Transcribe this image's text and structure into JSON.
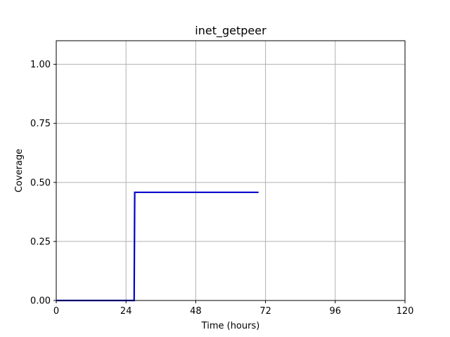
{
  "chart_data": {
    "type": "line",
    "title": "inet_getpeer",
    "xlabel": "Time (hours)",
    "ylabel": "Coverage",
    "xlim": [
      0,
      120
    ],
    "ylim": [
      0,
      1.1
    ],
    "xticks": [
      0,
      24,
      48,
      72,
      96,
      120
    ],
    "yticks": [
      0.0,
      0.25,
      0.5,
      0.75,
      1.0
    ],
    "xtick_labels": [
      "0",
      "24",
      "48",
      "72",
      "96",
      "120"
    ],
    "ytick_labels": [
      "0.00",
      "0.25",
      "0.50",
      "0.75",
      "1.00"
    ],
    "grid": true,
    "series": [
      {
        "color": "#0000cc",
        "x": [
          0,
          26.8,
          27.0,
          69.6
        ],
        "y": [
          0.0,
          0.0,
          0.458,
          0.458
        ]
      }
    ]
  }
}
